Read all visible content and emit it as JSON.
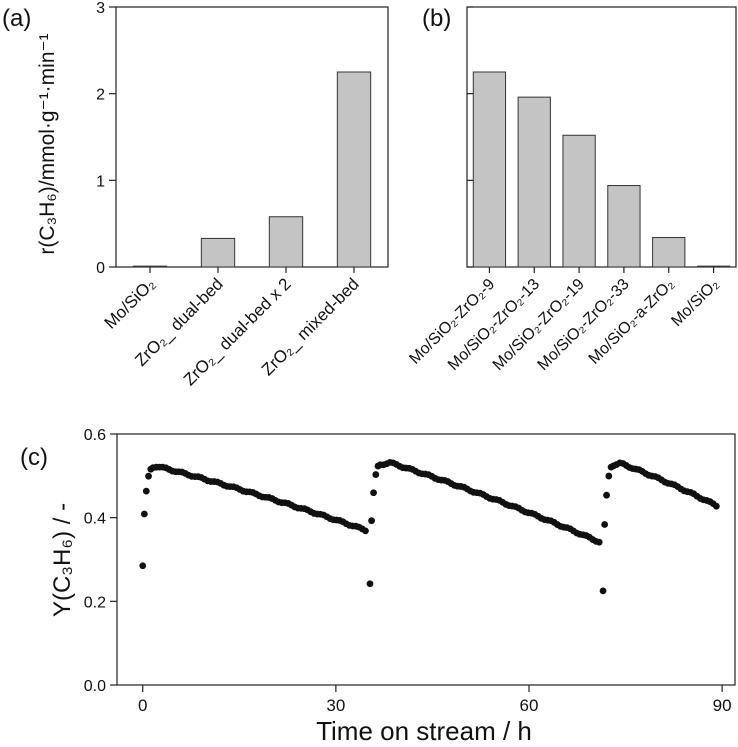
{
  "chart_data": [
    {
      "panel": "(a)",
      "type": "bar",
      "categories": [
        "Mo/SiO₂",
        "ZrO₂_ dual-bed",
        "ZrO₂_ dual-bed x 2",
        "ZrO₂_ mixed-bed"
      ],
      "values": [
        0.01,
        0.33,
        0.58,
        2.25
      ],
      "ylabel": "r(C₃H₆)/mmol·g⁻¹·min⁻¹",
      "ylim": [
        0,
        3
      ],
      "yticks": [
        0,
        1,
        2,
        3
      ]
    },
    {
      "panel": "(b)",
      "type": "bar",
      "categories": [
        "Mo/SiO₂-ZrO₂-9",
        "Mo/SiO₂-ZrO₂-13",
        "Mo/SiO₂-ZrO₂-19",
        "Mo/SiO₂-ZrO₂-33",
        "Mo/SiO₂-a-ZrO₂",
        "Mo/SiO₂"
      ],
      "values": [
        2.25,
        1.96,
        1.52,
        0.94,
        0.34,
        0.01
      ],
      "ylim": [
        0,
        3
      ]
    },
    {
      "panel": "(c)",
      "type": "scatter",
      "xlabel": "Time on stream / h",
      "ylabel": "Y(C₃H₆) / -",
      "xlim": [
        -4,
        92
      ],
      "ylim": [
        0,
        0.6
      ],
      "xticks": [
        0,
        30,
        60,
        90
      ],
      "yticks": [
        "0.0",
        "0.2",
        "0.4",
        "0.6"
      ],
      "cycles": [
        {
          "start": 0,
          "end": 35,
          "initial": 0.285,
          "peak_time": 2.2,
          "peak": 0.523,
          "final": 0.368
        },
        {
          "start": 35.3,
          "end": 71.2,
          "initial": 0.242,
          "peak_time": 38.3,
          "peak": 0.532,
          "final": 0.34
        },
        {
          "start": 71.5,
          "end": 89.2,
          "initial": 0.225,
          "peak_time": 74.2,
          "peak": 0.53,
          "final": 0.428
        }
      ]
    }
  ]
}
